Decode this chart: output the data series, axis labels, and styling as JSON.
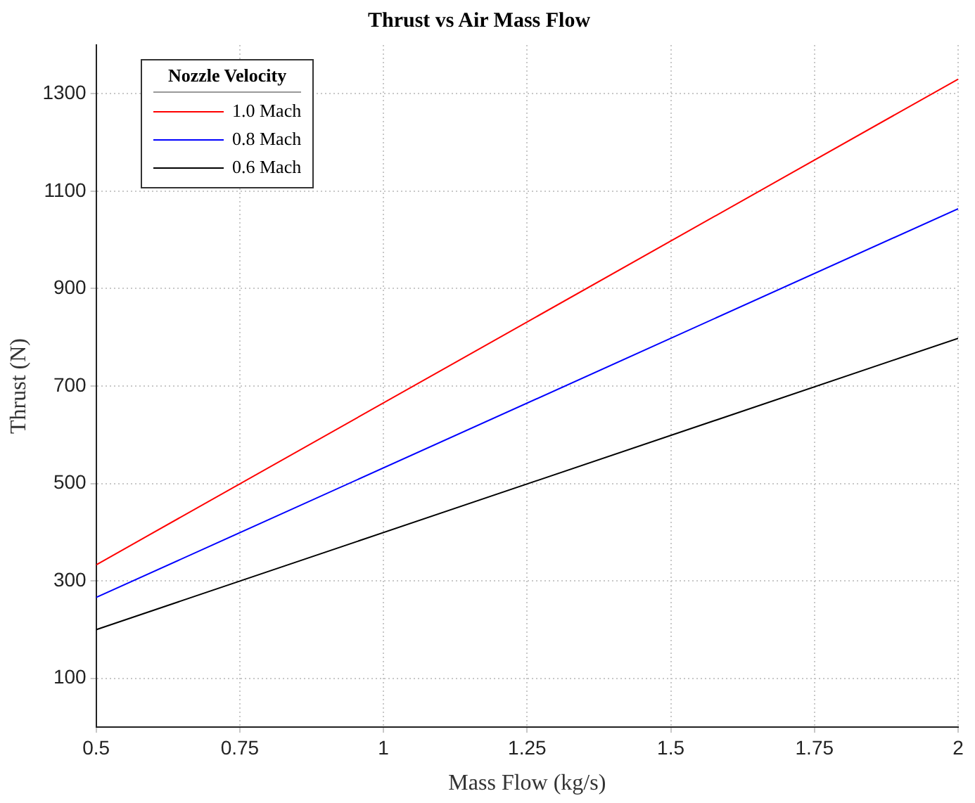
{
  "chart_data": {
    "type": "line",
    "title": "Thrust vs Air Mass Flow",
    "xlabel": "Mass Flow (kg/s)",
    "ylabel": "Thrust (N)",
    "legend_title": "Nozzle Velocity",
    "x": [
      0.5,
      2
    ],
    "series": [
      {
        "name": "1.0 Mach",
        "color": "#ff0000",
        "values": [
          333,
          1330
        ]
      },
      {
        "name": "0.8 Mach",
        "color": "#0000ff",
        "values": [
          266,
          1064
        ]
      },
      {
        "name": "0.6 Mach",
        "color": "#000000",
        "values": [
          200,
          798
        ]
      }
    ],
    "xlim": [
      0.5,
      2
    ],
    "xticks": [
      0.5,
      0.75,
      1,
      1.25,
      1.5,
      1.75,
      2
    ],
    "ylim": [
      0,
      1400
    ],
    "yticks": [
      100,
      300,
      500,
      700,
      900,
      1100,
      1300
    ],
    "grid": true,
    "legend": "top left",
    "marker": "none",
    "line_style": "solid"
  }
}
